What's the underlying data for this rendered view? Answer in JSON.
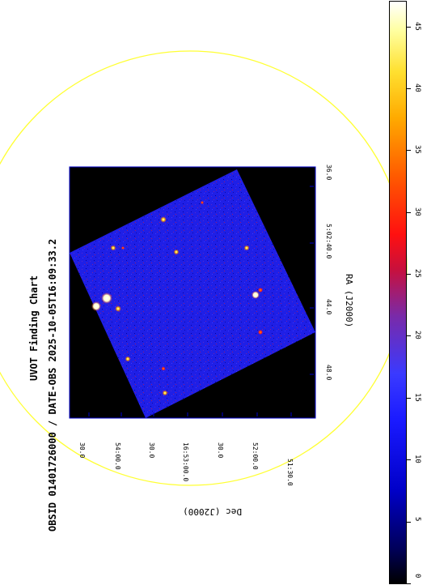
{
  "title": "UVOT Finding Chart",
  "subtitle": "OBSID 01401726000 / DATE-OBS 2025-10-05T16:09:33.2",
  "axes": {
    "ra_label": "RA (J2000)",
    "dec_label": "Dec (J2000)",
    "ra_ticks": [
      "36.0",
      "5:02:40.0",
      "44.0",
      "48.0"
    ],
    "dec_ticks": [
      "30.0",
      "54:00.0",
      "30.0",
      "16:53:00.0",
      "30.0",
      "52:00.0",
      "51:30.0"
    ]
  },
  "colorbar": {
    "ticks": [
      "45",
      "40",
      "35",
      "30",
      "25",
      "20",
      "15",
      "10",
      "5",
      "0"
    ],
    "min": 0,
    "max": 47
  },
  "colors": {
    "circle": "#ffff33",
    "frame": "#0000cc",
    "background": "#ffffff"
  }
}
